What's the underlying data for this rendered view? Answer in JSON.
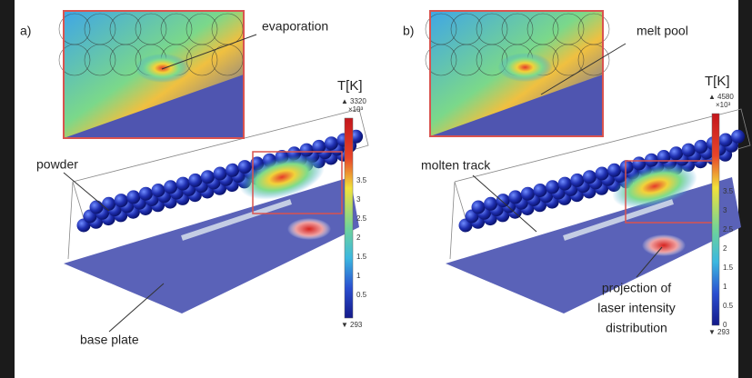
{
  "panels": [
    {
      "label": "a)",
      "inset_label": "evaporation",
      "colorbar": {
        "title": "T[K]",
        "max": "3320",
        "multiplier": "×10³",
        "ticks": [
          "3.5",
          "3",
          "2.5",
          "2",
          "1.5",
          "1",
          "0.5"
        ],
        "min": "293"
      },
      "annotations": [
        "powder",
        "base plate"
      ]
    },
    {
      "label": "b)",
      "inset_label": "melt pool",
      "colorbar": {
        "title": "T[K]",
        "max": "4580",
        "multiplier": "×10³",
        "ticks": [
          "3.5",
          "3",
          "2.5",
          "2",
          "1.5",
          "1",
          "0.5",
          "0"
        ],
        "min": "293"
      },
      "annotations": [
        "molten track"
      ],
      "projection_label": [
        "projection of",
        "laser intensity",
        "distribution"
      ]
    }
  ]
}
